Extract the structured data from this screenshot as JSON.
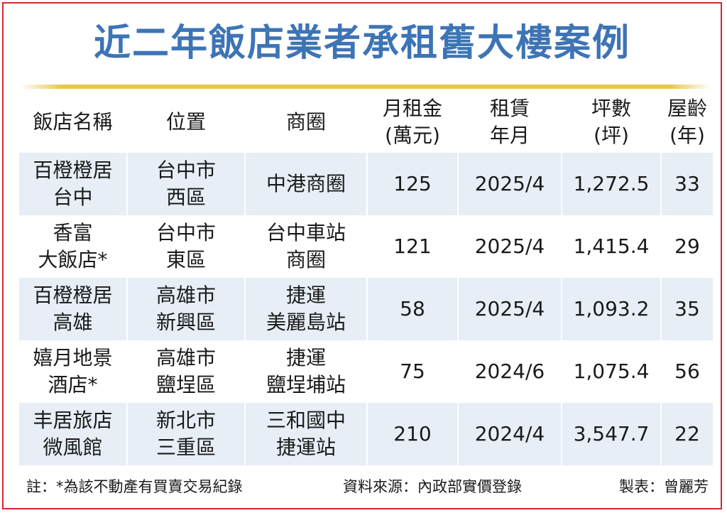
{
  "title": "近二年飯店業者承租舊大樓案例",
  "table": {
    "headers": [
      "飯店名稱",
      "位置",
      "商圈",
      "月租金\n(萬元)",
      "租賃\n年月",
      "坪數\n(坪)",
      "屋齡\n(年)"
    ],
    "rows": [
      [
        "百橙橙居\n台中",
        "台中市\n西區",
        "中港商圈",
        "125",
        "2025/4",
        "1,272.5",
        "33"
      ],
      [
        "香富\n大飯店*",
        "台中市\n東區",
        "台中車站\n商圈",
        "121",
        "2025/4",
        "1,415.4",
        "29"
      ],
      [
        "百橙橙居\n高雄",
        "高雄市\n新興區",
        "捷運\n美麗島站",
        "58",
        "2025/4",
        "1,093.2",
        "35"
      ],
      [
        "嬉月地景\n酒店*",
        "高雄市\n鹽埕區",
        "捷運\n鹽埕埔站",
        "75",
        "2024/6",
        "1,075.4",
        "56"
      ],
      [
        "丰居旅店\n微風館",
        "新北市\n三重區",
        "三和國中\n捷運站",
        "210",
        "2024/4",
        "3,547.7",
        "22"
      ]
    ]
  },
  "footer": {
    "note": "註：*為該不動產有買賣交易紀錄",
    "source": "資料來源：內政部實價登錄",
    "maker": "製表：曾麗芳"
  },
  "colors": {
    "title": "#3d74b5",
    "rule": "#e8c64a",
    "stripe": "#e7eef6",
    "border": "#d9262c"
  }
}
